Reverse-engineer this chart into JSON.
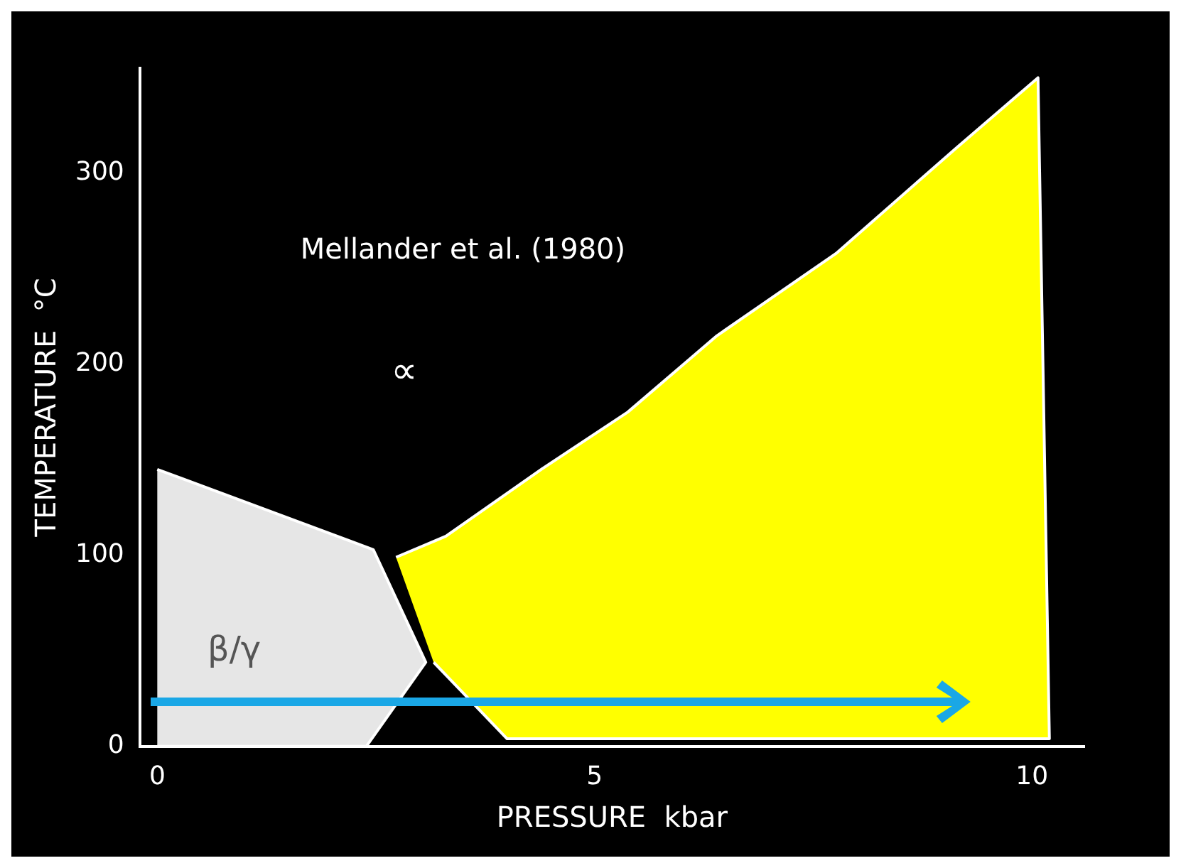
{
  "chart_data": {
    "type": "area",
    "xlabel": "PRESSURE  kbar",
    "ylabel": "TEMPERATURE  °C",
    "xlim": [
      -0.2,
      10.6
    ],
    "ylim": [
      0,
      355
    ],
    "xticks": [
      0,
      5,
      10
    ],
    "yticks": [
      0,
      100,
      200,
      300
    ],
    "grid": false,
    "legend": false,
    "marker": "none",
    "series": [
      {
        "color": "#e6e6e6",
        "x": [
          0,
          2.47,
          3.07,
          2.39,
          0
        ],
        "values": [
          145,
          103,
          44,
          0,
          0
        ]
      },
      {
        "color": "#ffff00",
        "x": [
          2.73,
          3.3,
          4.39,
          5.38,
          6.4,
          7.76,
          9.13,
          10.07,
          10.2,
          4.0,
          3.16
        ],
        "values": [
          99,
          110,
          145,
          175,
          215,
          258,
          313,
          350,
          4,
          4,
          44
        ]
      }
    ],
    "annotations": [
      "Mellander et al. (1980)",
      "∝",
      "β/γ"
    ]
  }
}
